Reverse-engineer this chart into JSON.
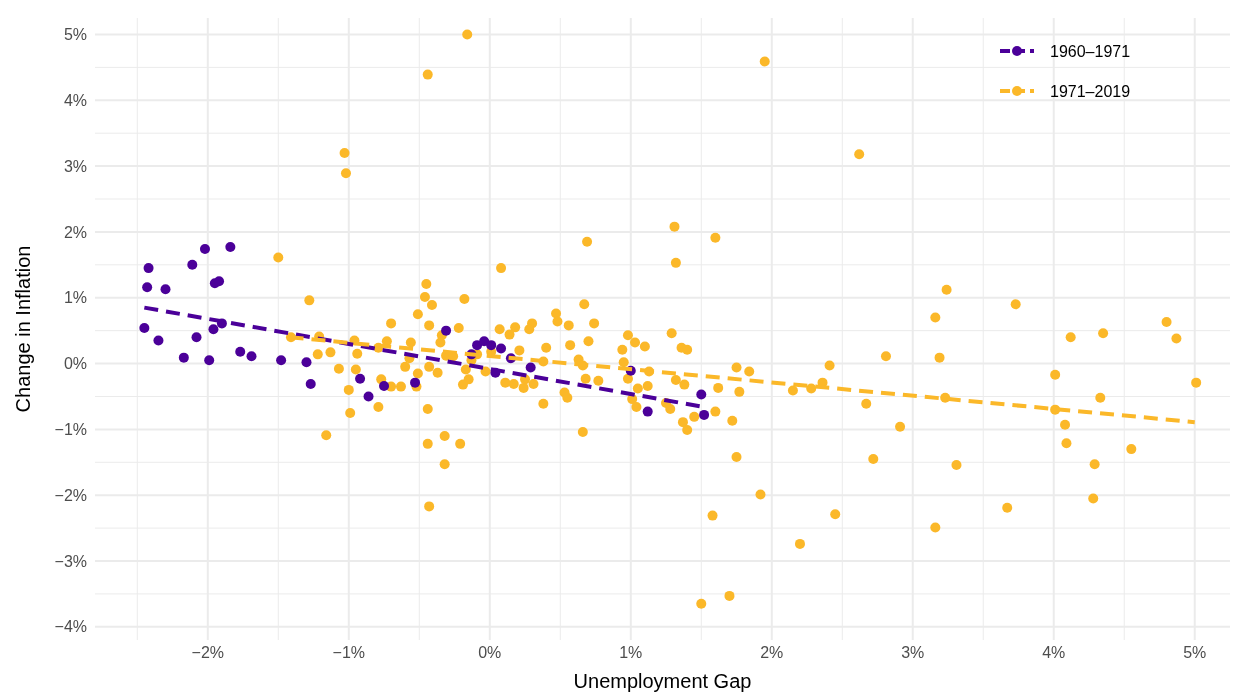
{
  "chart_data": {
    "type": "scatter",
    "xlabel": "Unemployment Gap",
    "ylabel": "Change in Inflation",
    "grid": true,
    "legend": "top right",
    "xlim": [
      -2.8,
      5.25
    ],
    "ylim": [
      -4.2,
      5.25
    ],
    "xticks": [
      {
        "value": -2.5,
        "label": null
      },
      {
        "value": -2,
        "label": "−2%"
      },
      {
        "value": -1.5,
        "label": null
      },
      {
        "value": -1,
        "label": "−1%"
      },
      {
        "value": -0.5,
        "label": null
      },
      {
        "value": 0,
        "label": "0%"
      },
      {
        "value": 0.5,
        "label": null
      },
      {
        "value": 1,
        "label": "1%"
      },
      {
        "value": 1.5,
        "label": null
      },
      {
        "value": 2,
        "label": "2%"
      },
      {
        "value": 2.5,
        "label": null
      },
      {
        "value": 3,
        "label": "3%"
      },
      {
        "value": 3.5,
        "label": null
      },
      {
        "value": 4,
        "label": "4%"
      },
      {
        "value": 4.5,
        "label": null
      },
      {
        "value": 5,
        "label": "5%"
      }
    ],
    "yticks": [
      {
        "value": -4,
        "label": "−4%"
      },
      {
        "value": -3.5,
        "label": null
      },
      {
        "value": -3,
        "label": "−3%"
      },
      {
        "value": -2.5,
        "label": null
      },
      {
        "value": -2,
        "label": "−2%"
      },
      {
        "value": -1.5,
        "label": null
      },
      {
        "value": -1,
        "label": "−1%"
      },
      {
        "value": -0.5,
        "label": null
      },
      {
        "value": 0,
        "label": "0%"
      },
      {
        "value": 0.5,
        "label": null
      },
      {
        "value": 1,
        "label": "1%"
      },
      {
        "value": 1.5,
        "label": null
      },
      {
        "value": 2,
        "label": "2%"
      },
      {
        "value": 2.5,
        "label": null
      },
      {
        "value": 3,
        "label": "3%"
      },
      {
        "value": 3.5,
        "label": null
      },
      {
        "value": 4,
        "label": "4%"
      },
      {
        "value": 4.5,
        "label": null
      },
      {
        "value": 5,
        "label": "5%"
      }
    ],
    "series": [
      {
        "name": "1960–1971",
        "color": "#4b0099",
        "marker": "circle",
        "x": [
          -2.45,
          -2.42,
          -2.43,
          -2.35,
          -2.3,
          -2.17,
          -2.11,
          -2.08,
          -2.02,
          -1.99,
          -1.96,
          -1.95,
          -1.92,
          -1.9,
          -1.84,
          -1.77,
          -1.69,
          -1.48,
          -1.3,
          -1.27,
          -0.92,
          -0.86,
          -0.75,
          -0.53,
          -0.31,
          -0.13,
          -0.09,
          -0.04,
          0.01,
          0.04,
          0.08,
          0.15,
          0.29,
          1.0,
          1.12,
          1.5,
          1.52
        ],
        "values": [
          0.54,
          1.45,
          1.16,
          0.35,
          1.13,
          0.09,
          1.5,
          0.4,
          1.74,
          0.05,
          0.52,
          1.22,
          1.25,
          0.61,
          1.77,
          0.18,
          0.11,
          0.05,
          0.02,
          -0.31,
          -0.23,
          -0.5,
          -0.34,
          -0.29,
          0.5,
          0.14,
          0.28,
          0.34,
          0.28,
          -0.14,
          0.23,
          0.08,
          -0.06,
          -0.11,
          -0.73,
          -0.47,
          -0.78
        ]
      },
      {
        "name": "1971–2019",
        "color": "#fbb829",
        "marker": "circle",
        "x": [
          -0.16,
          -0.44,
          1.95,
          -1.03,
          -1.02,
          2.62,
          -1.5,
          1.31,
          1.32,
          0.69,
          1.6,
          0.08,
          -1.28,
          -0.45,
          -0.18,
          -0.46,
          -0.41,
          3.24,
          3.73,
          3.16,
          4.8,
          4.87,
          4.35,
          4.12,
          2.81,
          3.19,
          2.41,
          4.01,
          5.01,
          3.23,
          4.33,
          4.01,
          4.08,
          4.09,
          2.91,
          2.67,
          2.36,
          2.28,
          2.15,
          2.72,
          3.31,
          4.55,
          4.29,
          4.28,
          3.67,
          3.16,
          2.45,
          2.2,
          1.92,
          1.75,
          1.58,
          1.5,
          1.7,
          1.75,
          1.84,
          1.77,
          1.72,
          1.62,
          1.6,
          1.45,
          1.36,
          1.4,
          1.29,
          1.32,
          1.38,
          1.28,
          1.25,
          1.37,
          1.4,
          1.1,
          1.03,
          0.98,
          0.94,
          0.95,
          0.98,
          1.05,
          1.01,
          1.04,
          1.13,
          1.12,
          0.74,
          0.56,
          0.57,
          0.63,
          0.67,
          0.7,
          0.66,
          0.68,
          0.66,
          0.47,
          0.48,
          0.77,
          0.53,
          0.55,
          0.4,
          0.38,
          0.38,
          0.3,
          0.28,
          0.18,
          0.14,
          0.07,
          0.21,
          0.25,
          0.24,
          0.17,
          0.31,
          0.11,
          0.01,
          -0.03,
          -0.09,
          -0.13,
          -0.17,
          -0.15,
          -0.19,
          -0.22,
          -0.21,
          -0.32,
          -0.32,
          -0.43,
          -0.44,
          -0.44,
          -0.43,
          -0.34,
          -0.35,
          -0.31,
          -0.37,
          -0.26,
          -0.43,
          -0.51,
          -0.51,
          -0.52,
          -0.57,
          -0.56,
          -0.6,
          -0.63,
          -0.7,
          -0.7,
          -0.73,
          -0.77,
          -0.79,
          -0.79,
          -0.96,
          -0.94,
          -0.95,
          -1.0,
          -0.99,
          -1.07,
          -1.16,
          -1.13,
          -1.21,
          -1.22,
          -1.41
        ],
        "values": [
          5.0,
          4.39,
          4.59,
          3.2,
          2.89,
          3.18,
          1.61,
          2.08,
          1.53,
          1.85,
          1.91,
          1.45,
          0.96,
          1.21,
          0.98,
          1.01,
          0.89,
          1.12,
          0.9,
          0.7,
          0.63,
          0.38,
          0.46,
          0.4,
          0.11,
          0.09,
          -0.03,
          -0.17,
          -0.29,
          -0.52,
          -0.52,
          -0.7,
          -0.93,
          -1.21,
          -0.96,
          -0.61,
          -0.29,
          -0.38,
          -0.41,
          -1.45,
          -1.54,
          -1.3,
          -1.53,
          -2.05,
          -2.19,
          -2.49,
          -2.29,
          -2.74,
          -1.99,
          -1.42,
          -2.31,
          -3.65,
          -3.53,
          -0.06,
          -0.12,
          -0.43,
          -0.87,
          -0.37,
          -0.73,
          -0.81,
          0.24,
          0.21,
          0.46,
          -0.25,
          -0.32,
          -0.69,
          -0.6,
          -0.89,
          -1.01,
          0.26,
          0.32,
          0.43,
          0.21,
          0.02,
          -0.23,
          -0.38,
          -0.54,
          -0.66,
          -0.12,
          -0.34,
          0.61,
          0.58,
          0.28,
          0.06,
          0.9,
          0.34,
          -0.03,
          -0.23,
          -1.04,
          0.76,
          0.64,
          -0.26,
          -0.44,
          -0.52,
          0.24,
          0.03,
          -0.61,
          0.61,
          0.52,
          0.55,
          0.44,
          0.52,
          0.2,
          -0.24,
          -0.37,
          -0.31,
          -0.31,
          -0.29,
          0.18,
          -0.12,
          0.14,
          0.05,
          -0.09,
          -0.24,
          -0.32,
          0.54,
          -1.22,
          -1.1,
          -1.53,
          -2.17,
          -1.22,
          -0.69,
          -0.05,
          0.43,
          0.32,
          0.12,
          -0.14,
          0.11,
          0.58,
          0.75,
          -0.15,
          -0.35,
          0.08,
          0.32,
          -0.05,
          -0.35,
          0.61,
          -0.35,
          0.34,
          -0.24,
          0.24,
          -0.66,
          0.35,
          0.15,
          -0.09,
          -0.4,
          -0.75,
          -0.08,
          -1.09,
          0.17,
          0.41,
          0.14,
          0.4
        ]
      },
      {
        "type": "line",
        "color": "#4b0099",
        "line_style": "dashed",
        "marker": "none",
        "x": [
          -2.45,
          1.52
        ],
        "values": [
          0.85,
          -0.66
        ]
      },
      {
        "type": "line",
        "color": "#fbb829",
        "line_style": "dashed",
        "marker": "none",
        "x": [
          -1.42,
          5.0
        ],
        "values": [
          0.4,
          -0.89
        ]
      }
    ]
  }
}
